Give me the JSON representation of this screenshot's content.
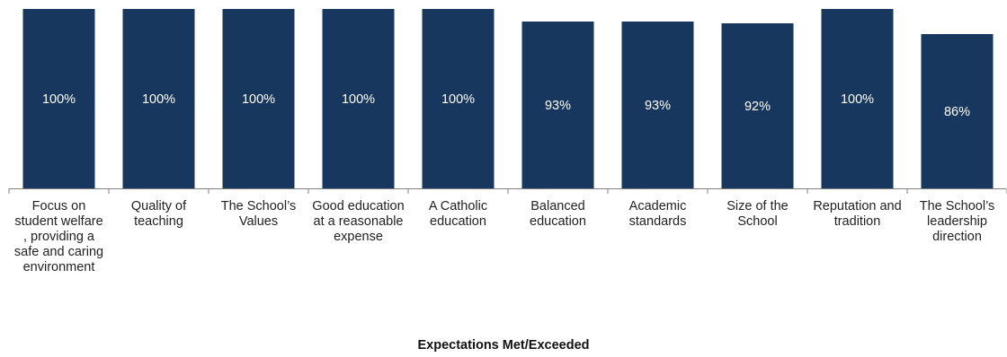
{
  "chart_data": {
    "type": "bar",
    "categories": [
      "Focus on student welfare , providing a safe and caring environment",
      "Quality of teaching",
      "The School’s Values",
      "Good education at a reasonable expense",
      "A Catholic education",
      "Balanced education",
      "Academic standards",
      "Size of the School",
      "Reputation and tradition",
      "The School’s leadership direction"
    ],
    "values": [
      100,
      100,
      100,
      100,
      100,
      93,
      93,
      92,
      100,
      86
    ],
    "value_labels": [
      "100%",
      "100%",
      "100%",
      "100%",
      "100%",
      "93%",
      "93%",
      "92%",
      "100%",
      "86%"
    ],
    "xlabel": "Expectations Met/Exceeded",
    "ylim": [
      0,
      100
    ],
    "grid": false,
    "colors": {
      "bar": "#17375e",
      "label_text": "#ffffff",
      "axis": "#808080"
    }
  }
}
